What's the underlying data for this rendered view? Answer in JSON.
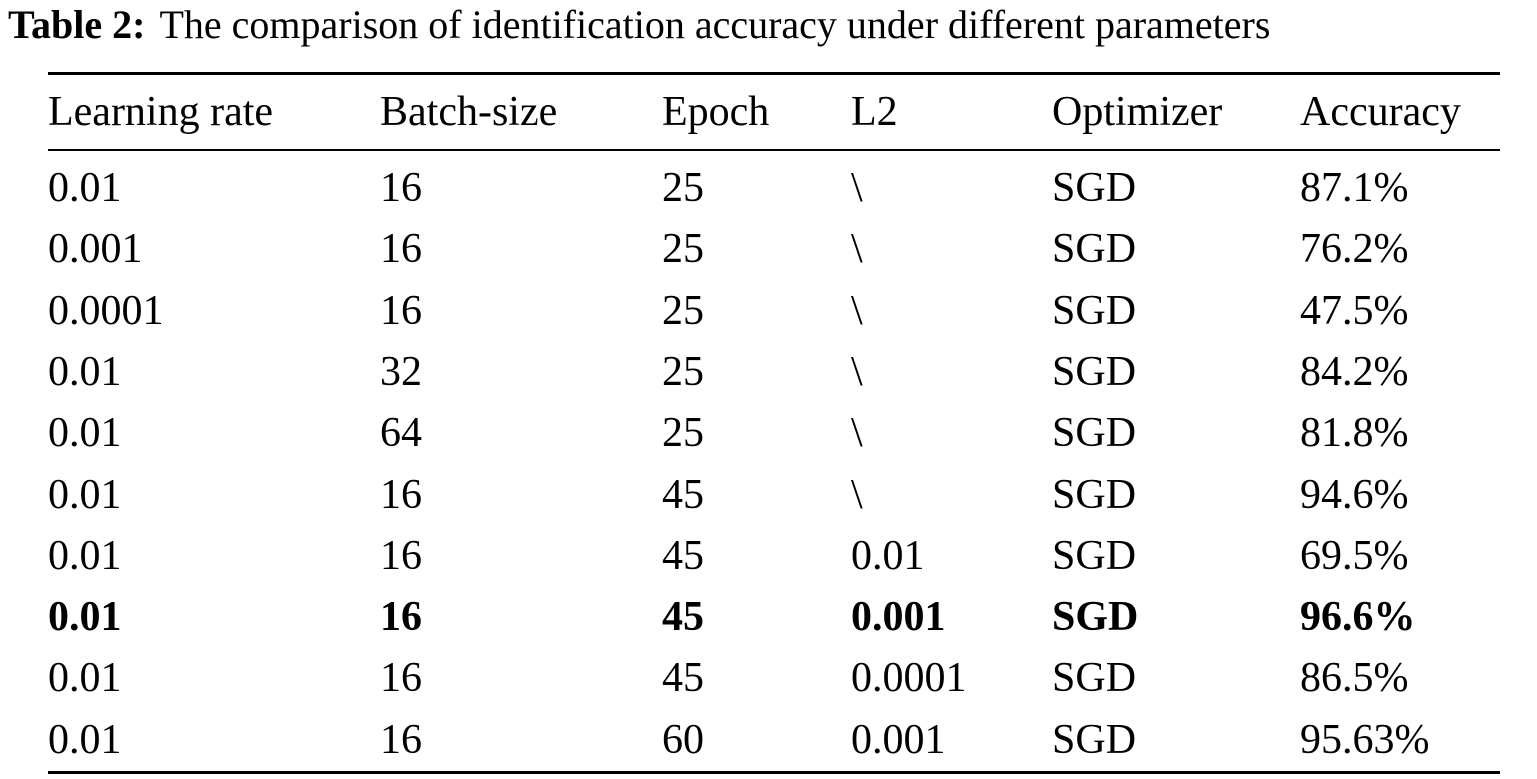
{
  "caption": {
    "label": "Table 2:",
    "text": "The comparison of identification accuracy under different parameters"
  },
  "table": {
    "header": [
      "Learning rate",
      "Batch-size",
      "Epoch",
      "L2",
      "Optimizer",
      "Accuracy"
    ],
    "rows": [
      [
        "0.01",
        "16",
        "25",
        "\\",
        "SGD",
        "87.1%"
      ],
      [
        "0.001",
        "16",
        "25",
        "\\",
        "SGD",
        "76.2%"
      ],
      [
        "0.0001",
        "16",
        "25",
        "\\",
        "SGD",
        "47.5%"
      ],
      [
        "0.01",
        "32",
        "25",
        "\\",
        "SGD",
        "84.2%"
      ],
      [
        "0.01",
        "64",
        "25",
        "\\",
        "SGD",
        "81.8%"
      ],
      [
        "0.01",
        "16",
        "45",
        "\\",
        "SGD",
        "94.6%"
      ],
      [
        "0.01",
        "16",
        "45",
        "0.01",
        "SGD",
        "69.5%"
      ],
      [
        "0.01",
        "16",
        "45",
        "0.001",
        "SGD",
        "96.6%"
      ],
      [
        "0.01",
        "16",
        "45",
        "0.0001",
        "SGD",
        "86.5%"
      ],
      [
        "0.01",
        "16",
        "60",
        "0.001",
        "SGD",
        "95.63%"
      ]
    ]
  }
}
